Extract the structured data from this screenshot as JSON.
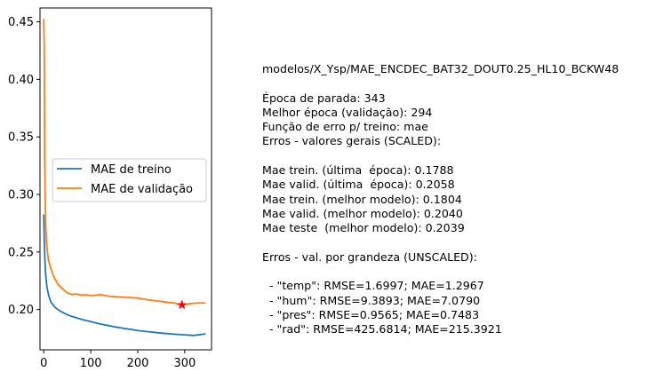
{
  "chart_data": {
    "type": "line",
    "title": "",
    "xlabel": "",
    "ylabel": "",
    "xlim": [
      -8,
      357
    ],
    "ylim": [
      0.165,
      0.462
    ],
    "xticks": [
      0,
      100,
      200,
      300
    ],
    "yticks": [
      0.2,
      0.25,
      0.3,
      0.35,
      0.4,
      0.45
    ],
    "xtick_labels": [
      "0",
      "100",
      "200",
      "300"
    ],
    "ytick_labels": [
      "0.20",
      "0.25",
      "0.30",
      "0.35",
      "0.40",
      "0.45"
    ],
    "grid": false,
    "legend_position": "center-left",
    "series": [
      {
        "name": "MAE de treino",
        "color": "#1f77b4",
        "x": [
          0,
          1,
          2,
          3,
          4,
          5,
          7,
          10,
          13,
          16,
          20,
          25,
          30,
          40,
          50,
          60,
          80,
          100,
          120,
          150,
          180,
          200,
          220,
          250,
          280,
          300,
          320,
          343
        ],
        "y": [
          0.282,
          0.262,
          0.248,
          0.238,
          0.231,
          0.226,
          0.219,
          0.213,
          0.209,
          0.206,
          0.204,
          0.2015,
          0.2,
          0.1975,
          0.1955,
          0.194,
          0.1915,
          0.1895,
          0.1875,
          0.185,
          0.183,
          0.1818,
          0.1808,
          0.1795,
          0.1785,
          0.178,
          0.1775,
          0.1788
        ]
      },
      {
        "name": "MAE de validação",
        "color": "#ff7f0e",
        "x": [
          0,
          1,
          2,
          3,
          4,
          6,
          8,
          10,
          12,
          15,
          18,
          22,
          26,
          30,
          35,
          40,
          50,
          60,
          70,
          80,
          90,
          100,
          120,
          140,
          160,
          180,
          200,
          220,
          240,
          260,
          280,
          294,
          300,
          320,
          343
        ],
        "y": [
          0.452,
          0.43,
          0.33,
          0.3,
          0.275,
          0.258,
          0.249,
          0.243,
          0.24,
          0.236,
          0.232,
          0.228,
          0.225,
          0.222,
          0.22,
          0.218,
          0.2145,
          0.213,
          0.2135,
          0.2125,
          0.213,
          0.212,
          0.213,
          0.2115,
          0.211,
          0.2105,
          0.21,
          0.2085,
          0.2075,
          0.2065,
          0.2055,
          0.204,
          0.2045,
          0.2055,
          0.2058
        ]
      }
    ],
    "annotations": [
      {
        "type": "marker",
        "shape": "star",
        "color": "#ff0000",
        "x": 294,
        "y": 0.204
      }
    ]
  },
  "info": {
    "lines": [
      "modelos/X_Ysp/MAE_ENCDEC_BAT32_DOUT0.25_HL10_BCKW48",
      "",
      "Época de parada: 343",
      "Melhor época (validação): 294",
      "Função de erro p/ treino: mae",
      "Erros - valores gerais (SCALED):",
      "",
      "Mae trein. (última  época): 0.1788",
      "Mae valid. (última  época): 0.2058",
      "Mae trein. (melhor modelo): 0.1804",
      "Mae valid. (melhor modelo): 0.2040",
      "Mae teste  (melhor modelo): 0.2039",
      "",
      "Erros - val. por grandeza (UNSCALED):",
      "",
      "  - \"temp\": RMSE=1.6997; MAE=1.2967",
      "  - \"hum\": RMSE=9.3893; MAE=7.0790",
      "  - \"pres\": RMSE=0.9565; MAE=0.7483",
      "  - \"rad\": RMSE=425.6814; MAE=215.3921"
    ]
  }
}
